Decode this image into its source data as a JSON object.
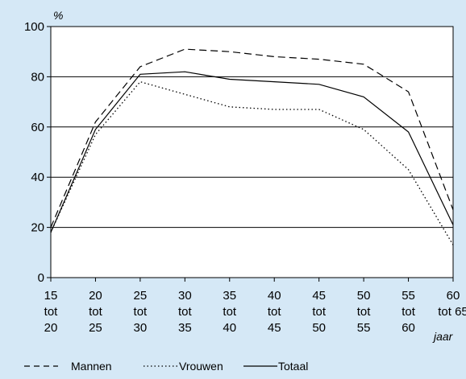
{
  "chart_data": {
    "type": "line",
    "title": "",
    "ylabel": "%",
    "xlabel": "jaar",
    "ylim": [
      0,
      100
    ],
    "yticks": [
      0,
      20,
      40,
      60,
      80,
      100
    ],
    "grid": true,
    "legend_placement": "bottom",
    "categories": [
      [
        "15",
        "tot",
        "20"
      ],
      [
        "20",
        "tot",
        "25"
      ],
      [
        "25",
        "tot",
        "30"
      ],
      [
        "30",
        "tot",
        "35"
      ],
      [
        "35",
        "tot",
        "40"
      ],
      [
        "40",
        "tot",
        "45"
      ],
      [
        "45",
        "tot",
        "50"
      ],
      [
        "50",
        "tot",
        "55"
      ],
      [
        "55",
        "tot",
        "60"
      ],
      [
        "60",
        "tot 65"
      ]
    ],
    "series": [
      {
        "name": "Mannen",
        "style": "dashed",
        "values": [
          20,
          62,
          84,
          91,
          90,
          88,
          87,
          85,
          74,
          27
        ]
      },
      {
        "name": "Vrouwen",
        "style": "dotted",
        "values": [
          18,
          57,
          78,
          73,
          68,
          67,
          67,
          59,
          43,
          13
        ]
      },
      {
        "name": "Totaal",
        "style": "solid",
        "values": [
          18,
          59,
          81,
          82,
          79,
          78,
          77,
          72,
          58,
          21
        ]
      }
    ]
  }
}
